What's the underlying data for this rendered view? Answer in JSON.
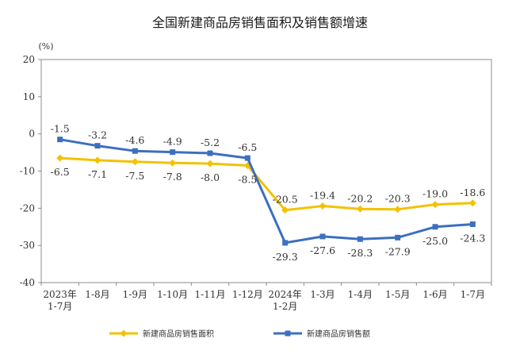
{
  "chart_data": {
    "type": "line",
    "title": "全国新建商品房销售面积及销售额增速",
    "unit_label": "(%)",
    "categories": [
      [
        "2023年",
        "1-7月"
      ],
      [
        "1-8月"
      ],
      [
        "1-9月"
      ],
      [
        "1-10月"
      ],
      [
        "1-11月"
      ],
      [
        "1-12月"
      ],
      [
        "2024年",
        "1-2月"
      ],
      [
        "1-3月"
      ],
      [
        "1-4月"
      ],
      [
        "1-5月"
      ],
      [
        "1-6月"
      ],
      [
        "1-7月"
      ]
    ],
    "y_ticks": [
      20,
      10,
      0,
      -10,
      -20,
      -30,
      -40
    ],
    "ylim": [
      -40,
      20
    ],
    "grid": false,
    "legend_position": "bottom",
    "series": [
      {
        "name": "新建商品房销售面积",
        "color": "#f2c200",
        "marker": "diamond",
        "values": [
          -6.5,
          -7.1,
          -7.5,
          -7.8,
          -8.0,
          -8.5,
          -20.5,
          -19.4,
          -20.2,
          -20.3,
          -19.0,
          -18.6
        ],
        "labels": [
          "-6.5",
          "-7.1",
          "-7.5",
          "-7.8",
          "-8.0",
          "-8.5",
          "-20.5",
          "-19.4",
          "-20.2",
          "-20.3",
          "-19.0",
          "-18.6"
        ]
      },
      {
        "name": "新建商品房销售额",
        "color": "#3c6fbf",
        "marker": "square",
        "values": [
          -1.5,
          -3.2,
          -4.6,
          -4.9,
          -5.2,
          -6.5,
          -29.3,
          -27.6,
          -28.3,
          -27.9,
          -25.0,
          -24.3
        ],
        "labels": [
          "-1.5",
          "-3.2",
          "-4.6",
          "-4.9",
          "-5.2",
          "-6.5",
          "-29.3",
          "-27.6",
          "-28.3",
          "-27.9",
          "-25.0",
          "-24.3"
        ]
      }
    ]
  }
}
